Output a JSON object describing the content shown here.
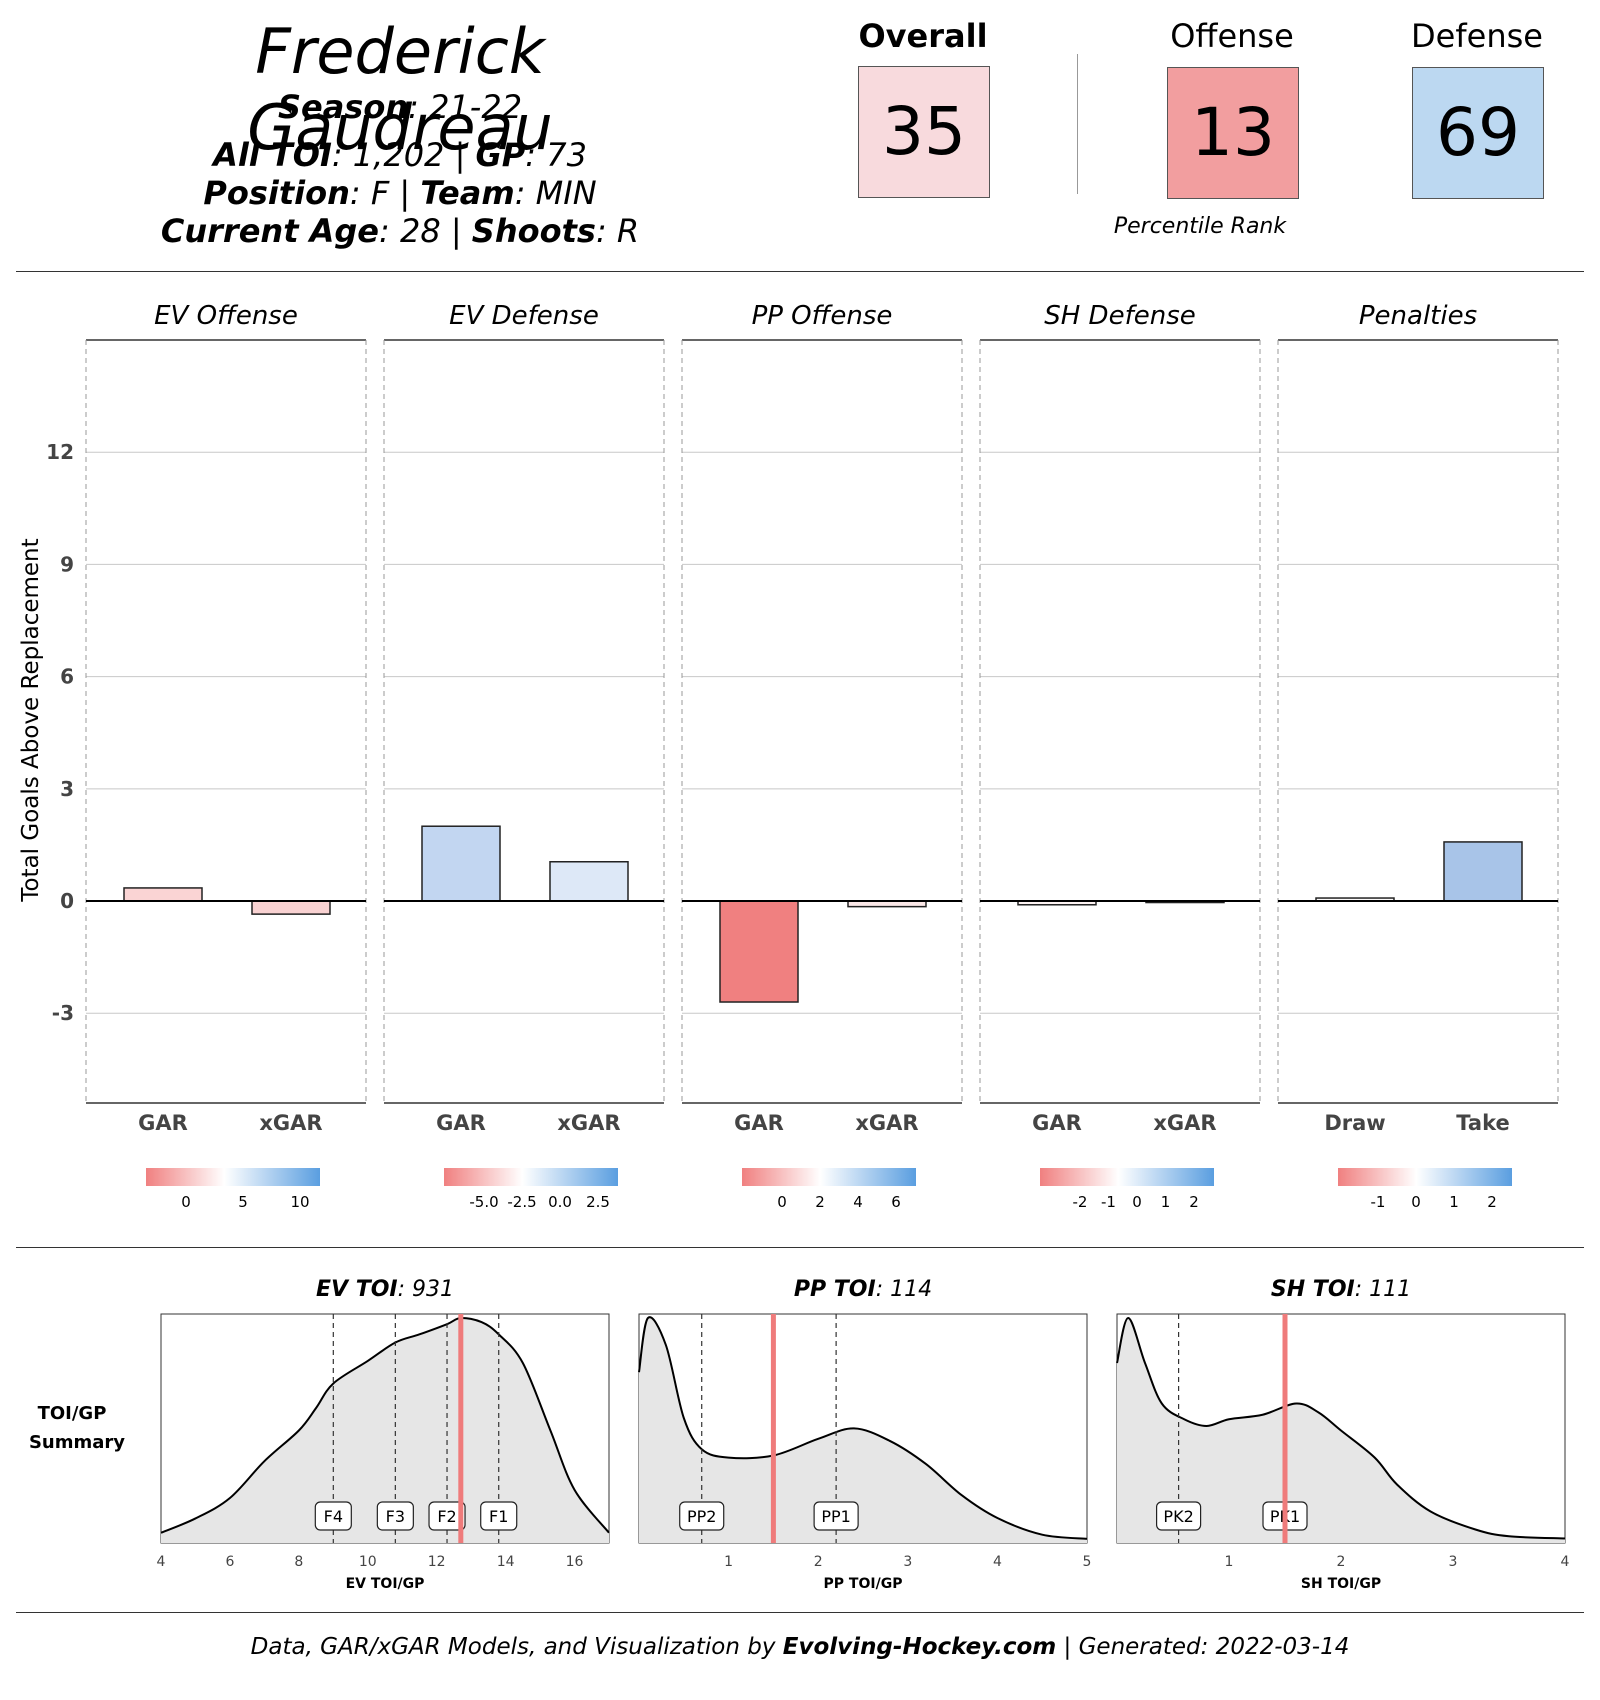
{
  "header": {
    "player_name": "Frederick Gaudreau",
    "season_label": "Season",
    "season": "21-22",
    "toi_label": "All TOI",
    "toi": "1,202",
    "gp_label": "GP",
    "gp": "73",
    "position_label": "Position",
    "position": "F",
    "team_label": "Team",
    "team": "MIN",
    "age_label": "Current Age",
    "age": "28",
    "shoots_label": "Shoots",
    "shoots": "R"
  },
  "ranks": {
    "overall_label": "Overall",
    "overall": "35",
    "overall_color": "#f8dadd",
    "offense_label": "Offense",
    "offense": "13",
    "offense_color": "#f29e9f",
    "defense_label": "Defense",
    "defense": "69",
    "defense_color": "#bcd8f1",
    "caption": "Percentile Rank"
  },
  "chart_data": [
    {
      "type": "bar",
      "ylabel": "Total Goals Above Replacement",
      "ylim": [
        -5.4,
        15
      ],
      "yticks": [
        -3,
        0,
        3,
        6,
        9,
        12
      ],
      "panels": [
        {
          "title": "EV Offense",
          "categories": [
            "GAR",
            "xGAR"
          ],
          "values": [
            0.35,
            -0.35
          ],
          "colors": [
            "#fad4d4",
            "#f9d2d2"
          ],
          "legend": {
            "ticks": [
              "0",
              "5",
              "10"
            ]
          }
        },
        {
          "title": "EV Defense",
          "categories": [
            "GAR",
            "xGAR"
          ],
          "values": [
            2.0,
            1.05
          ],
          "colors": [
            "#c2d6f1",
            "#dde8f7"
          ],
          "legend": {
            "ticks": [
              "-5.0",
              "-2.5",
              "0.0",
              "2.5"
            ]
          }
        },
        {
          "title": "PP Offense",
          "categories": [
            "GAR",
            "xGAR"
          ],
          "values": [
            -2.7,
            -0.15
          ],
          "colors": [
            "#f08080",
            "#fbe8e8"
          ],
          "legend": {
            "ticks": [
              "0",
              "2",
              "4",
              "6"
            ]
          }
        },
        {
          "title": "SH Defense",
          "categories": [
            "GAR",
            "xGAR"
          ],
          "values": [
            -0.1,
            -0.02
          ],
          "colors": [
            "#fdf3f3",
            "#fefefe"
          ],
          "legend": {
            "ticks": [
              "-2",
              "-1",
              "0",
              "1",
              "2"
            ]
          }
        },
        {
          "title": "Penalties",
          "categories": [
            "Draw",
            "Take"
          ],
          "values": [
            0.08,
            1.58
          ],
          "colors": [
            "#fdfbfb",
            "#a8c4e8"
          ],
          "legend": {
            "ticks": [
              "-1",
              "0",
              "1",
              "2"
            ]
          }
        }
      ]
    },
    {
      "type": "area",
      "side_label_line1": "TOI/GP",
      "side_label_line2": "Summary",
      "panels": [
        {
          "title_bold": "EV TOI",
          "title_value": "931",
          "xlabel": "EV TOI/GP",
          "xlim": [
            4,
            17
          ],
          "xticks": [
            4,
            6,
            8,
            10,
            12,
            14,
            16
          ],
          "player_value": 12.7,
          "markers": [
            {
              "label": "F4",
              "x": 9.0
            },
            {
              "label": "F3",
              "x": 10.8
            },
            {
              "label": "F2",
              "x": 12.3
            },
            {
              "label": "F1",
              "x": 13.8
            }
          ],
          "density": [
            [
              4,
              0.05
            ],
            [
              5,
              0.12
            ],
            [
              6,
              0.22
            ],
            [
              7,
              0.4
            ],
            [
              8,
              0.55
            ],
            [
              8.5,
              0.66
            ],
            [
              9,
              0.78
            ],
            [
              10,
              0.89
            ],
            [
              10.8,
              0.98
            ],
            [
              11.5,
              1.02
            ],
            [
              12.3,
              1.07
            ],
            [
              12.7,
              1.1
            ],
            [
              13.3,
              1.08
            ],
            [
              13.8,
              1.02
            ],
            [
              14.5,
              0.88
            ],
            [
              15.3,
              0.55
            ],
            [
              16,
              0.26
            ],
            [
              17,
              0.05
            ]
          ]
        },
        {
          "title_bold": "PP TOI",
          "title_value": "114",
          "xlabel": "PP TOI/GP",
          "xlim": [
            0,
            5
          ],
          "xticks": [
            1,
            2,
            3,
            4,
            5
          ],
          "player_value": 1.5,
          "markers": [
            {
              "label": "PP2",
              "x": 0.7
            },
            {
              "label": "PP1",
              "x": 2.2
            }
          ],
          "density": [
            [
              0,
              0.82
            ],
            [
              0.1,
              1.08
            ],
            [
              0.3,
              0.95
            ],
            [
              0.5,
              0.6
            ],
            [
              0.7,
              0.45
            ],
            [
              1.0,
              0.41
            ],
            [
              1.5,
              0.42
            ],
            [
              2.0,
              0.5
            ],
            [
              2.4,
              0.55
            ],
            [
              2.8,
              0.49
            ],
            [
              3.2,
              0.38
            ],
            [
              3.6,
              0.23
            ],
            [
              4.0,
              0.12
            ],
            [
              4.5,
              0.04
            ],
            [
              5.0,
              0.02
            ]
          ]
        },
        {
          "title_bold": "SH TOI",
          "title_value": "111",
          "xlabel": "SH TOI/GP",
          "xlim": [
            0,
            4
          ],
          "xticks": [
            1,
            2,
            3,
            4
          ],
          "player_value": 1.5,
          "markers": [
            {
              "label": "PK2",
              "x": 0.55
            },
            {
              "label": "PK1",
              "x": 1.5
            }
          ],
          "density": [
            [
              0,
              0.8
            ],
            [
              0.1,
              1.0
            ],
            [
              0.25,
              0.8
            ],
            [
              0.4,
              0.62
            ],
            [
              0.6,
              0.55
            ],
            [
              0.8,
              0.52
            ],
            [
              1.0,
              0.55
            ],
            [
              1.3,
              0.57
            ],
            [
              1.6,
              0.62
            ],
            [
              1.8,
              0.58
            ],
            [
              2.0,
              0.5
            ],
            [
              2.3,
              0.38
            ],
            [
              2.5,
              0.26
            ],
            [
              2.8,
              0.14
            ],
            [
              3.2,
              0.06
            ],
            [
              3.5,
              0.03
            ],
            [
              4.0,
              0.02
            ]
          ]
        }
      ]
    }
  ],
  "footer": {
    "prefix": "Data, GAR/xGAR Models, and Visualization by",
    "brand": "Evolving-Hockey.com",
    "generated": "| Generated: 2022-03-14"
  }
}
